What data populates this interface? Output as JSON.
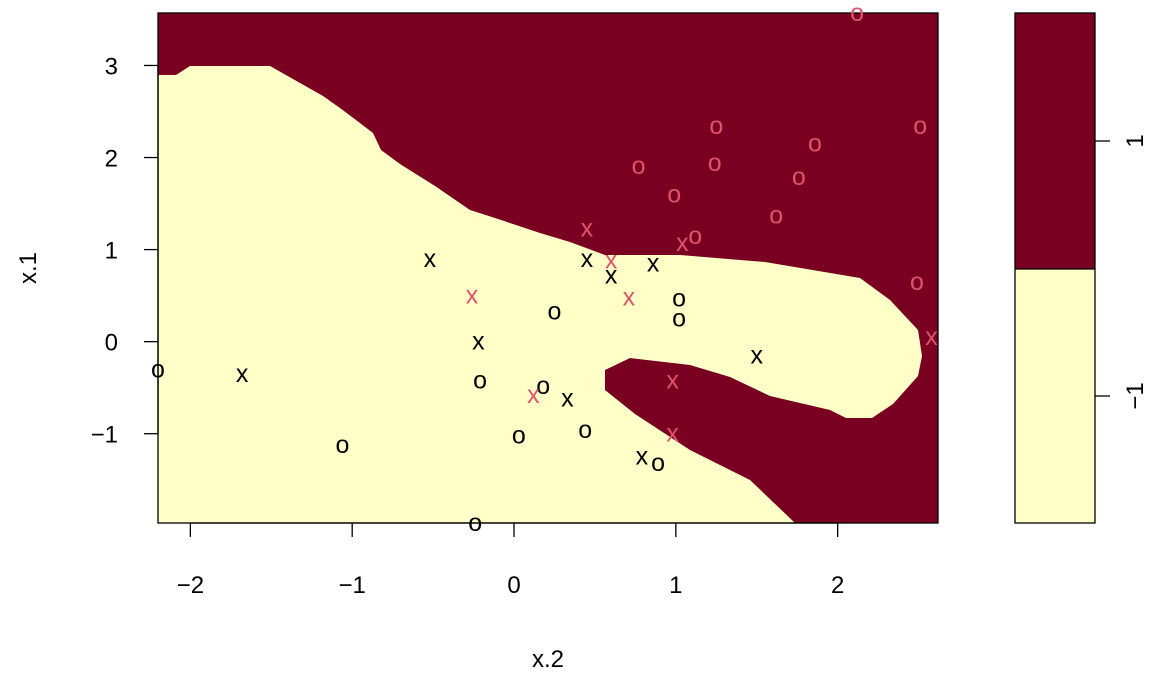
{
  "chart_data": {
    "type": "scatter",
    "title": "",
    "xlabel": "x.2",
    "ylabel": "x.1",
    "xlim": [
      -2.2,
      2.62
    ],
    "ylim": [
      -1.97,
      3.57
    ],
    "x_ticks": [
      "−2",
      "−1",
      "0",
      "1",
      "2"
    ],
    "x_tick_values": [
      -2,
      -1,
      0,
      1,
      2
    ],
    "y_ticks": [
      "−1",
      "0",
      "1",
      "2",
      "3"
    ],
    "y_tick_values": [
      -1,
      0,
      1,
      2,
      3
    ],
    "background_class_regions": "decision regions of a two-class classifier (class 1 dark red, class −1 pale yellow)",
    "colors": {
      "class_1": "#7a0022",
      "class_neg1": "#ffffc8",
      "marker_black": "#000000",
      "marker_red": "#df536b"
    },
    "legend": {
      "placement": "right",
      "type": "color-key",
      "labels": [
        "1",
        "−1"
      ],
      "values": [
        1,
        -1
      ]
    },
    "marker_symbols": {
      "x": "x",
      "o": "o"
    },
    "series": [
      {
        "marker": "x",
        "color": "black",
        "points": [
          [
            -0.52,
            0.9
          ],
          [
            -0.22,
            0.0
          ],
          [
            0.45,
            0.9
          ],
          [
            0.6,
            0.72
          ],
          [
            0.86,
            0.85
          ],
          [
            1.5,
            -0.15
          ],
          [
            -1.68,
            -0.35
          ],
          [
            0.33,
            -0.62
          ],
          [
            0.79,
            -1.25
          ]
        ]
      },
      {
        "marker": "o",
        "color": "black",
        "points": [
          [
            0.25,
            0.33
          ],
          [
            1.02,
            0.47
          ],
          [
            1.02,
            0.25
          ],
          [
            -0.21,
            -0.42
          ],
          [
            0.18,
            -0.48
          ],
          [
            -1.06,
            -1.12
          ],
          [
            0.03,
            -1.02
          ],
          [
            0.44,
            -0.96
          ],
          [
            0.89,
            -1.32
          ],
          [
            -0.24,
            -1.97
          ],
          [
            -2.2,
            -0.3
          ]
        ]
      },
      {
        "marker": "x",
        "color": "red",
        "points": [
          [
            -0.26,
            0.5
          ],
          [
            0.45,
            1.23
          ],
          [
            0.6,
            0.88
          ],
          [
            0.71,
            0.48
          ],
          [
            1.04,
            1.07
          ],
          [
            0.12,
            -0.58
          ],
          [
            0.98,
            -0.42
          ],
          [
            0.98,
            -1.0
          ],
          [
            2.58,
            0.05
          ]
        ]
      },
      {
        "marker": "o",
        "color": "red",
        "points": [
          [
            0.77,
            1.91
          ],
          [
            0.99,
            1.6
          ],
          [
            1.24,
            1.94
          ],
          [
            1.25,
            2.34
          ],
          [
            1.12,
            1.15
          ],
          [
            1.62,
            1.37
          ],
          [
            1.76,
            1.79
          ],
          [
            1.86,
            2.15
          ],
          [
            2.12,
            3.57
          ],
          [
            2.51,
            2.34
          ],
          [
            2.49,
            0.65
          ]
        ]
      }
    ]
  }
}
